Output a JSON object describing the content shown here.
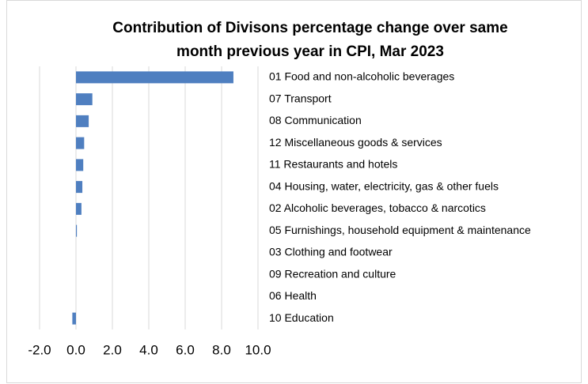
{
  "chart_data": {
    "type": "bar",
    "orientation": "horizontal",
    "title": [
      "Contribution of Divisons percentage change over same",
      "month previous year in CPI, Mar 2023"
    ],
    "categories": [
      "01 Food and non-alcoholic beverages",
      "07 Transport",
      "08 Communication",
      "12 Miscellaneous goods & services",
      "11 Restaurants and hotels",
      "04 Housing, water, electricity, gas & other fuels",
      "02 Alcoholic beverages, tobacco & narcotics",
      "05 Furnishings, household equipment & maintenance",
      "03 Clothing and footwear",
      "09 Recreation and culture",
      "06 Health",
      "10 Education"
    ],
    "values": [
      8.65,
      0.9,
      0.7,
      0.45,
      0.4,
      0.35,
      0.3,
      0.05,
      0,
      0,
      0,
      -0.2
    ],
    "color": "#4f7fc0",
    "xlim": [
      -2,
      10
    ],
    "xticks": [
      {
        "value": -2,
        "label": "-2.0"
      },
      {
        "value": 0,
        "label": "0.0"
      },
      {
        "value": 2,
        "label": "2.0"
      },
      {
        "value": 4,
        "label": "4.0"
      },
      {
        "value": 6,
        "label": "6.0"
      },
      {
        "value": 8,
        "label": "8.0"
      },
      {
        "value": 10,
        "label": "10.0"
      }
    ],
    "grid": true
  }
}
